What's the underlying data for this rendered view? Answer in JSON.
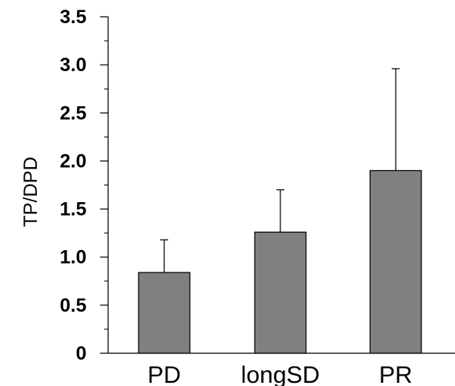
{
  "chart_data": {
    "type": "bar",
    "categories": [
      "PD",
      "longSD",
      "PR"
    ],
    "values": [
      0.84,
      1.26,
      1.9
    ],
    "error_upper": [
      1.18,
      1.7,
      2.96
    ],
    "ylabel": "TP/DPD",
    "ylim": [
      0,
      3.5
    ],
    "major_ticks": [
      0,
      0.5,
      1.0,
      1.5,
      2.0,
      2.5,
      3.0,
      3.5
    ],
    "major_tick_labels": [
      "0",
      "0.5",
      "1.0",
      "1.5",
      "2.0",
      "2.5",
      "3.0",
      "3.5"
    ],
    "minor_tick_step": 0.25,
    "grid": false,
    "legend": "none",
    "bar_color": "#808080",
    "edge_color": "#000000"
  }
}
